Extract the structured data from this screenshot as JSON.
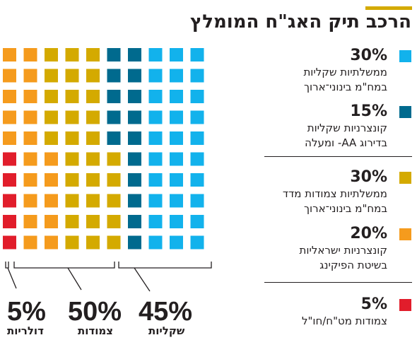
{
  "title": "הרכב תיק האג\"ח המומלץ",
  "chart_data": {
    "type": "waffle",
    "grid": {
      "rows": 10,
      "cols": 10
    },
    "series": [
      {
        "key": "gov_cpi",
        "pct": "30%",
        "value": 30,
        "color": "#12b2ec",
        "label_lines": [
          "ממשלתיות שקליות",
          "במח\"מ בינוני־ארוך"
        ]
      },
      {
        "key": "corp_cpi",
        "pct": "15%",
        "value": 15,
        "color": "#006a8e",
        "label_lines": [
          "קונצרניות שקליות",
          "בדירוג AA- ומעלה"
        ]
      },
      {
        "key": "gov_linked",
        "pct": "30%",
        "value": 30,
        "color": "#d4aa00",
        "label_lines": [
          "ממשלתיות צמודות מדד",
          "במח\"מ בינוני־ארוך"
        ]
      },
      {
        "key": "corp_linked",
        "pct": "20%",
        "value": 20,
        "color": "#f59b1d",
        "label_lines": [
          "קונצרניות ישראליות",
          "בשיטת הפיקינג"
        ]
      },
      {
        "key": "usd",
        "pct": "5%",
        "value": 5,
        "color": "#e11d2b",
        "label_lines": [
          "צמודות מט\"ח/חו\"ל"
        ]
      }
    ],
    "groups": [
      {
        "pct": "45%",
        "value": 45,
        "label": "שקליות"
      },
      {
        "pct": "50%",
        "value": 50,
        "label": "צמודות"
      },
      {
        "pct": "5%",
        "value": 5,
        "label": "דולריות"
      }
    ]
  }
}
